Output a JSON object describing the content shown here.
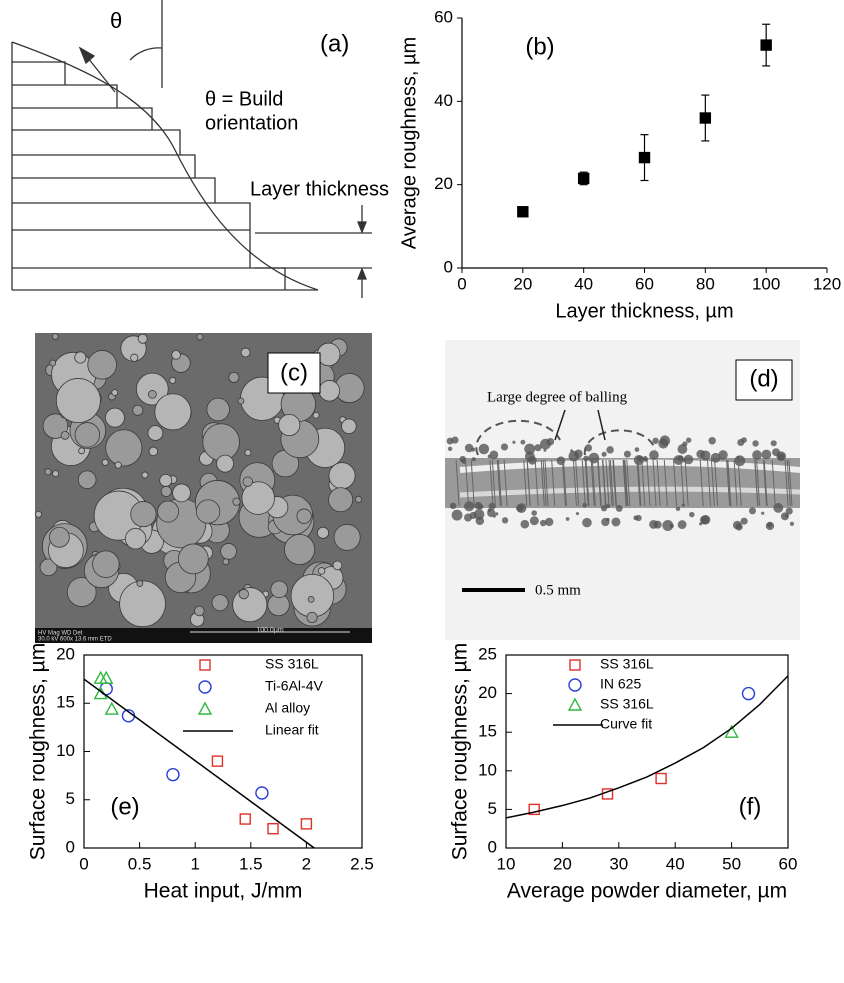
{
  "diagram": {
    "panel_label": "(a)",
    "theta": "θ",
    "orientation_line1": "θ = Build",
    "orientation_line2": "orientation",
    "layer_thickness": "Layer thickness"
  },
  "image_c": {
    "panel_label": "(c)",
    "scale_bar": "100.0µm",
    "info_header": "HV     Mag    WD      Det",
    "info_values": "30.0 kV 600x 13.6 mm ETD"
  },
  "image_d": {
    "panel_label": "(d)",
    "annotation": "Large degree of balling",
    "scale_bar": "0.5 mm"
  },
  "chart_data": [
    {
      "type": "scatter",
      "annotation": "(b)",
      "xlabel": "Layer thickness, µm",
      "ylabel": "Average roughness, µm",
      "x": [
        20,
        40,
        60,
        80,
        100
      ],
      "values": [
        13.5,
        21.5,
        26.5,
        36,
        53.5
      ],
      "errors": [
        0.7,
        1.5,
        5.5,
        5.5,
        5
      ],
      "color": "#000000",
      "marker": "square",
      "xlim": [
        0,
        120
      ],
      "xticks": [
        0,
        20,
        40,
        60,
        80,
        100,
        120
      ],
      "ylim": [
        0,
        60
      ],
      "yticks": [
        0,
        20,
        40,
        60
      ]
    },
    {
      "type": "scatter",
      "annotation": "(e)",
      "xlabel": "Heat input, J/mm",
      "ylabel": "Surface roughness, µm",
      "series": [
        {
          "name": "SS 316L",
          "color": "#e0302a",
          "marker": "square",
          "x": [
            1.2,
            1.45,
            1.7,
            2
          ],
          "values": [
            9,
            3,
            2,
            2.5
          ]
        },
        {
          "name": "Ti-6Al-4V",
          "color": "#2b3fd8",
          "marker": "circle",
          "x": [
            0.2,
            0.4,
            0.8,
            1.6
          ],
          "values": [
            16.5,
            13.7,
            7.6,
            5.7
          ]
        },
        {
          "name": "Al alloy",
          "color": "#2fb83f",
          "marker": "triangle",
          "x": [
            0.15,
            0.2,
            0.15,
            0.25
          ],
          "values": [
            17.6,
            17.6,
            16,
            14.4
          ]
        },
        {
          "name": "Linear fit",
          "color": "#000000",
          "marker": "line",
          "x": [
            0,
            2.07
          ],
          "values": [
            17.5,
            0
          ]
        }
      ],
      "xlim": [
        0,
        2.5
      ],
      "xticks": [
        0,
        0.5,
        1,
        1.5,
        2,
        2.5
      ],
      "ylim": [
        0,
        20
      ],
      "yticks": [
        0,
        5,
        10,
        15,
        20
      ]
    },
    {
      "type": "scatter",
      "annotation": "(f)",
      "xlabel": "Average powder diameter, µm",
      "ylabel": "Surface roughness, µm",
      "series": [
        {
          "name": "SS 316L",
          "color": "#e0302a",
          "marker": "square",
          "x": [
            15,
            28,
            37.5
          ],
          "values": [
            5,
            7,
            9
          ]
        },
        {
          "name": "IN 625",
          "color": "#2b3fd8",
          "marker": "circle",
          "x": [
            53
          ],
          "values": [
            20
          ]
        },
        {
          "name": "SS 316L",
          "color": "#2fb83f",
          "marker": "triangle",
          "x": [
            50
          ],
          "values": [
            15
          ]
        },
        {
          "name": "Curve fit",
          "color": "#000000",
          "marker": "line",
          "x": [
            10,
            15,
            20,
            25,
            30,
            35,
            40,
            45,
            50,
            55,
            60
          ],
          "values": [
            3.9,
            4.65,
            5.5,
            6.5,
            7.8,
            9.2,
            11,
            13,
            15.5,
            18.6,
            22.3
          ]
        }
      ],
      "xlim": [
        10,
        60
      ],
      "xticks": [
        10,
        20,
        30,
        40,
        50,
        60
      ],
      "ylim": [
        0,
        25
      ],
      "yticks": [
        0,
        5,
        10,
        15,
        20,
        25
      ]
    }
  ]
}
